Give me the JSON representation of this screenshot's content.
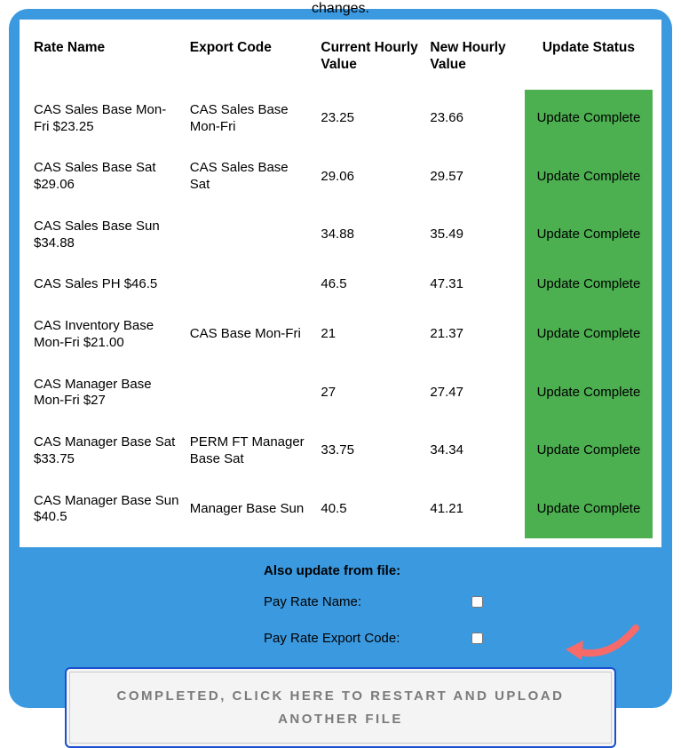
{
  "truncated_top_text": "changes.",
  "table": {
    "columns": [
      "Rate Name",
      "Export Code",
      "Current Hourly Value",
      "New Hourly Value",
      "Update Status"
    ],
    "rows": [
      {
        "rate_name": "CAS Sales Base Mon-Fri $23.25",
        "export_code": "CAS Sales Base Mon-Fri",
        "current": "23.25",
        "new": "23.66",
        "status": "Update Complete"
      },
      {
        "rate_name": "CAS Sales Base Sat $29.06",
        "export_code": "CAS Sales Base Sat",
        "current": "29.06",
        "new": "29.57",
        "status": "Update Complete"
      },
      {
        "rate_name": "CAS Sales Base Sun $34.88",
        "export_code": "",
        "current": "34.88",
        "new": "35.49",
        "status": "Update Complete"
      },
      {
        "rate_name": "CAS Sales PH $46.5",
        "export_code": "",
        "current": "46.5",
        "new": "47.31",
        "status": "Update Complete"
      },
      {
        "rate_name": "CAS Inventory Base Mon-Fri $21.00",
        "export_code": "CAS Base Mon-Fri",
        "current": "21",
        "new": "21.37",
        "status": "Update Complete"
      },
      {
        "rate_name": "CAS Manager Base Mon-Fri $27",
        "export_code": "",
        "current": "27",
        "new": "27.47",
        "status": "Update Complete"
      },
      {
        "rate_name": "CAS Manager Base Sat $33.75",
        "export_code": "PERM FT Manager Base Sat",
        "current": "33.75",
        "new": "34.34",
        "status": "Update Complete"
      },
      {
        "rate_name": "CAS Manager Base Sun $40.5",
        "export_code": "Manager Base Sun",
        "current": "40.5",
        "new": "41.21",
        "status": "Update Complete"
      }
    ],
    "status_bg_color": "#4caf50"
  },
  "also_update": {
    "title": "Also update from file:",
    "options": [
      {
        "label": "Pay Rate Name:",
        "checked": false
      },
      {
        "label": "Pay Rate Export Code:",
        "checked": false
      }
    ]
  },
  "restart_button_label": "COMPLETED, CLICK HERE TO RESTART AND UPLOAD ANOTHER FILE",
  "colors": {
    "panel_bg": "#3b99e0",
    "status_bg": "#4caf50",
    "button_border": "#1a4fcf",
    "button_bg": "#f4f4f4",
    "button_text": "#7a7a7a",
    "arrow": "#f66a6a"
  }
}
